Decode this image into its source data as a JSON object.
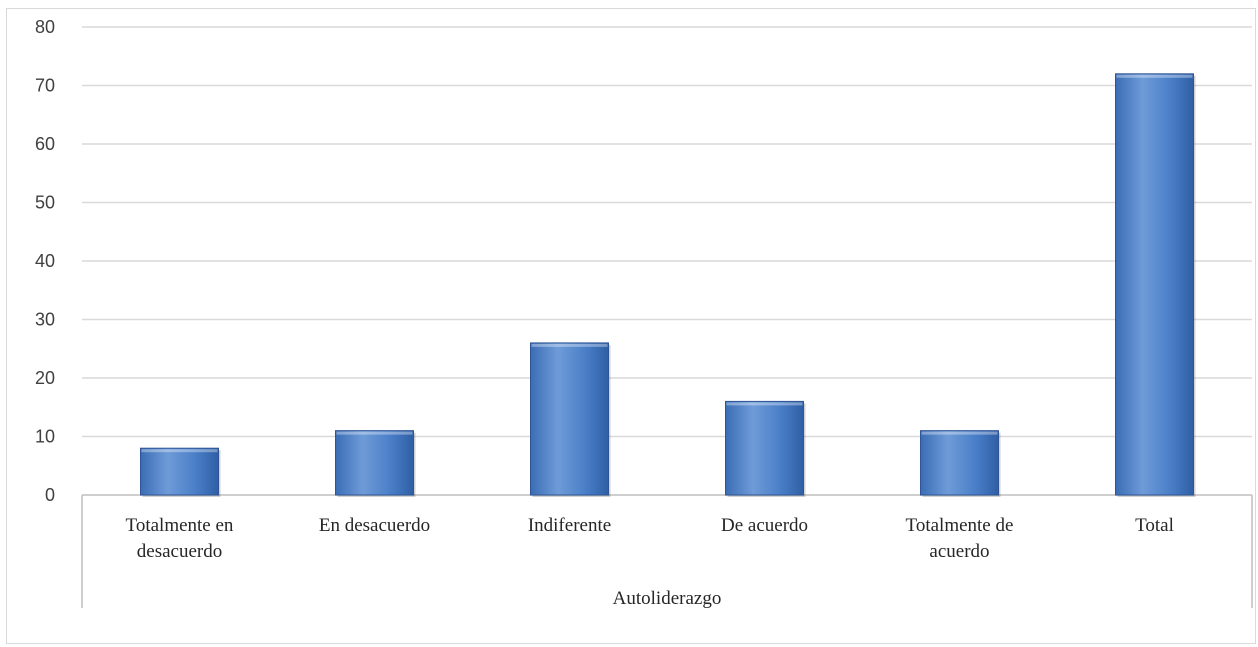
{
  "chart_data": {
    "type": "bar",
    "categories": [
      [
        "Totalmente en",
        "desacuerdo"
      ],
      [
        "En desacuerdo"
      ],
      [
        "Indiferente"
      ],
      [
        "De acuerdo"
      ],
      [
        "Totalmente de",
        "acuerdo"
      ],
      [
        "Total"
      ]
    ],
    "values": [
      8,
      11,
      26,
      16,
      11,
      72
    ],
    "group_label": "Autoliderazgo",
    "title": "",
    "xlabel": "",
    "ylabel": "",
    "ylim": [
      0,
      80
    ],
    "yticks": [
      0,
      10,
      20,
      30,
      40,
      50,
      60,
      70,
      80
    ],
    "grid": true,
    "legend": "none",
    "colors": {
      "bar_fill_top": "#6f9bd8",
      "bar_fill_mid": "#4a7fc8",
      "bar_fill_bottom": "#3a6db5",
      "bar_edge": "#2f5597",
      "grid": "#d9d9d9",
      "axis": "#bfbfbf"
    }
  }
}
